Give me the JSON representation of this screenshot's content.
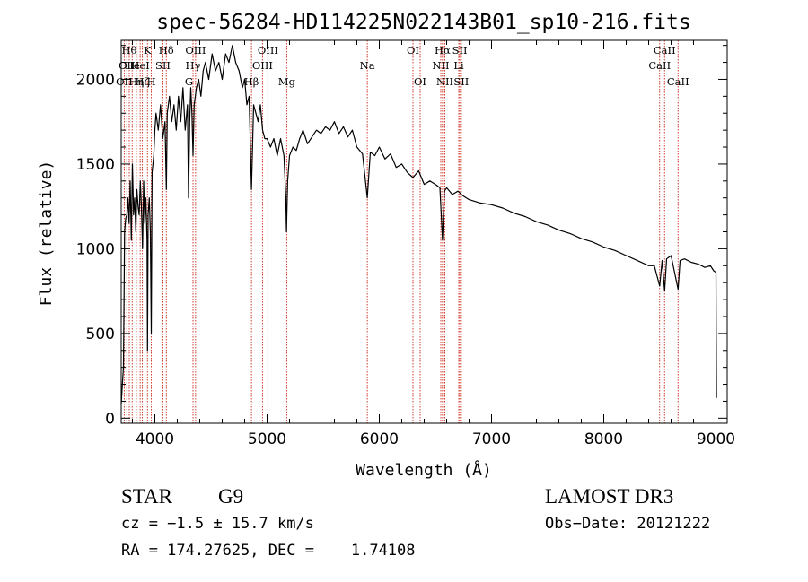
{
  "chart_data": {
    "type": "line",
    "title": "spec-56284-HD114225N022143B01_sp10-216.fits",
    "xlabel": "Wavelength (Å)",
    "ylabel": "Flux (relative)",
    "xlim": [
      3700,
      9100
    ],
    "ylim": [
      -30,
      2230
    ],
    "xticks": [
      4000,
      5000,
      6000,
      7000,
      8000,
      9000
    ],
    "yticks": [
      0,
      500,
      1000,
      1500,
      2000
    ],
    "x_minor_step": 200,
    "y_minor_step": 100,
    "grid": false,
    "series": [
      {
        "name": "flux",
        "x": [
          3700,
          3710,
          3720,
          3730,
          3740,
          3750,
          3760,
          3770,
          3780,
          3790,
          3800,
          3810,
          3820,
          3830,
          3840,
          3850,
          3860,
          3870,
          3880,
          3890,
          3900,
          3910,
          3920,
          3930,
          3934,
          3940,
          3950,
          3960,
          3968,
          3975,
          3990,
          4000,
          4010,
          4030,
          4050,
          4070,
          4090,
          4102,
          4110,
          4130,
          4150,
          4170,
          4190,
          4210,
          4230,
          4250,
          4270,
          4290,
          4300,
          4310,
          4320,
          4330,
          4340,
          4350,
          4370,
          4390,
          4410,
          4430,
          4450,
          4480,
          4510,
          4540,
          4570,
          4600,
          4630,
          4660,
          4690,
          4720,
          4750,
          4780,
          4800,
          4820,
          4840,
          4861,
          4880,
          4900,
          4920,
          4940,
          4960,
          4980,
          5000,
          5030,
          5060,
          5090,
          5120,
          5150,
          5167,
          5173,
          5183,
          5200,
          5230,
          5260,
          5290,
          5320,
          5360,
          5400,
          5440,
          5480,
          5520,
          5560,
          5600,
          5640,
          5680,
          5720,
          5760,
          5800,
          5850,
          5893,
          5920,
          5960,
          6000,
          6050,
          6100,
          6150,
          6200,
          6250,
          6300,
          6350,
          6400,
          6450,
          6500,
          6540,
          6563,
          6580,
          6600,
          6650,
          6700,
          6750,
          6800,
          6900,
          7000,
          7100,
          7200,
          7300,
          7400,
          7500,
          7600,
          7700,
          7800,
          7900,
          8000,
          8100,
          8200,
          8300,
          8400,
          8450,
          8498,
          8520,
          8542,
          8560,
          8600,
          8662,
          8680,
          8720,
          8780,
          8840,
          8900,
          8950,
          8980,
          9000,
          9005
        ],
        "values": [
          80,
          200,
          300,
          1100,
          1180,
          1200,
          1300,
          1150,
          1400,
          1050,
          1500,
          1200,
          1300,
          1100,
          1350,
          1250,
          1200,
          1400,
          1250,
          1000,
          1400,
          1150,
          1300,
          1050,
          400,
          1200,
          1300,
          1100,
          500,
          1450,
          1550,
          1700,
          1800,
          1700,
          1850,
          1650,
          1750,
          1350,
          1800,
          1900,
          1750,
          1850,
          1700,
          1900,
          1750,
          1950,
          1700,
          1850,
          1300,
          1750,
          1950,
          1800,
          1550,
          1850,
          1950,
          2000,
          1900,
          2050,
          2100,
          2000,
          2150,
          2050,
          2100,
          2000,
          2150,
          2100,
          2200,
          2100,
          2050,
          1950,
          2000,
          1850,
          1900,
          1350,
          1850,
          1800,
          1750,
          1850,
          1700,
          1650,
          1650,
          1600,
          1650,
          1550,
          1650,
          1550,
          1300,
          1100,
          1400,
          1550,
          1600,
          1580,
          1650,
          1700,
          1620,
          1660,
          1700,
          1680,
          1720,
          1700,
          1750,
          1680,
          1720,
          1660,
          1700,
          1600,
          1560,
          1300,
          1570,
          1550,
          1600,
          1530,
          1560,
          1480,
          1500,
          1450,
          1420,
          1460,
          1380,
          1400,
          1380,
          1360,
          1050,
          1340,
          1360,
          1320,
          1340,
          1310,
          1290,
          1270,
          1260,
          1240,
          1210,
          1190,
          1160,
          1140,
          1110,
          1090,
          1060,
          1040,
          1010,
          990,
          960,
          930,
          900,
          900,
          780,
          930,
          750,
          940,
          960,
          760,
          930,
          940,
          920,
          910,
          890,
          900,
          870,
          860,
          120
        ]
      }
    ],
    "line_markers": [
      {
        "wavelength": 3727,
        "label": "OII",
        "row": 2
      },
      {
        "wavelength": 3750,
        "label": "OII",
        "row": 1
      },
      {
        "wavelength": 3772,
        "label": "Hθ",
        "row": 0
      },
      {
        "wavelength": 3798,
        "label": "He",
        "row": 1
      },
      {
        "wavelength": 3835,
        "label": "Hη",
        "row": 2
      },
      {
        "wavelength": 3869,
        "label": "HeI",
        "row": 1
      },
      {
        "wavelength": 3889,
        "label": "Hζ",
        "row": 2
      },
      {
        "wavelength": 3934,
        "label": "K",
        "row": 0
      },
      {
        "wavelength": 3968,
        "label": "H",
        "row": 2
      },
      {
        "wavelength": 4072,
        "label": "SII",
        "row": 1
      },
      {
        "wavelength": 4102,
        "label": "Hδ",
        "row": 0
      },
      {
        "wavelength": 4304,
        "label": "G",
        "row": 2
      },
      {
        "wavelength": 4340,
        "label": "Hγ",
        "row": 1
      },
      {
        "wavelength": 4363,
        "label": "OIII",
        "row": 0
      },
      {
        "wavelength": 4861,
        "label": "Hβ",
        "row": 2
      },
      {
        "wavelength": 4959,
        "label": "OIII",
        "row": 1
      },
      {
        "wavelength": 5007,
        "label": "OIII",
        "row": 0
      },
      {
        "wavelength": 5175,
        "label": "Mg",
        "row": 2
      },
      {
        "wavelength": 5893,
        "label": "Na",
        "row": 1
      },
      {
        "wavelength": 6300,
        "label": "OI",
        "row": 0
      },
      {
        "wavelength": 6364,
        "label": "OI",
        "row": 2
      },
      {
        "wavelength": 6548,
        "label": "NII",
        "row": 1
      },
      {
        "wavelength": 6563,
        "label": "Hα",
        "row": 0
      },
      {
        "wavelength": 6584,
        "label": "NII",
        "row": 2
      },
      {
        "wavelength": 6708,
        "label": "Li",
        "row": 1
      },
      {
        "wavelength": 6717,
        "label": "SII",
        "row": 0
      },
      {
        "wavelength": 6731,
        "label": "SII",
        "row": 2
      },
      {
        "wavelength": 8498,
        "label": "CaII",
        "row": 1
      },
      {
        "wavelength": 8542,
        "label": "CaII",
        "row": 0
      },
      {
        "wavelength": 8662,
        "label": "CaII",
        "row": 2
      }
    ]
  },
  "info": {
    "object_class": "STAR",
    "subclass": "G9",
    "survey": "LAMOST DR3",
    "redshift_line": "cz = −1.5 ± 15.7 km/s",
    "obs_date_line": "Obs−Date: 20121222",
    "coords_line": "RA = 174.27625, DEC =    1.74108"
  },
  "colors": {
    "axis": "#000000",
    "spectrum": "#000000",
    "line_marker": "#cc2a1a",
    "background": "#ffffff"
  }
}
